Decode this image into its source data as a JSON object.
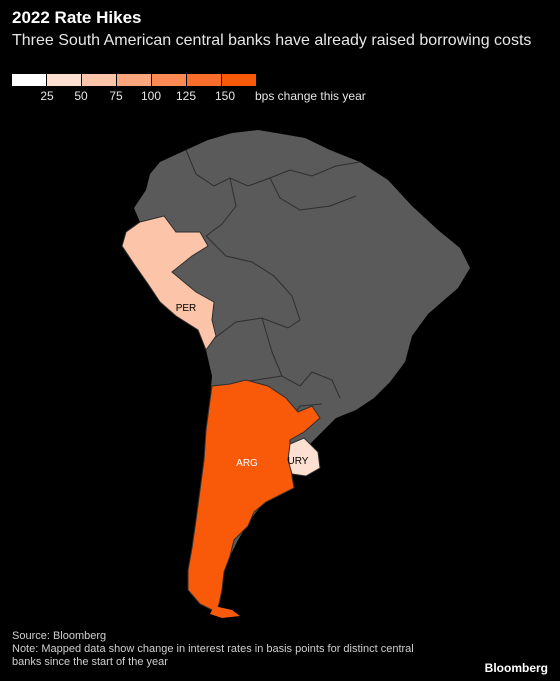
{
  "header": {
    "title": "2022 Rate Hikes",
    "subtitle": "Three South American central banks have already raised borrowing costs"
  },
  "legend": {
    "ticks": [
      "25",
      "50",
      "75",
      "100",
      "125",
      "150"
    ],
    "unit_label": "bps change this year",
    "colors": [
      "#ffffff",
      "#fde0d2",
      "#fcc4a8",
      "#fba77e",
      "#fa8b55",
      "#f96e2b",
      "#f85a0a"
    ]
  },
  "map": {
    "land_color": "#5a5a5a",
    "border_color": "#2e2e2e",
    "regions": [
      {
        "code": "PER",
        "label": "PER",
        "change_bps": 50,
        "color": "#fcc4a8"
      },
      {
        "code": "ARG",
        "label": "ARG",
        "change_bps": 150,
        "color": "#f85a0a"
      },
      {
        "code": "URY",
        "label": "URY",
        "change_bps": 25,
        "color": "#fde0d2"
      }
    ]
  },
  "footer": {
    "source": "Source: Bloomberg",
    "note": "Note: Mapped data show change in interest rates in basis points for distinct central banks since the start of the year",
    "brand": "Bloomberg"
  }
}
